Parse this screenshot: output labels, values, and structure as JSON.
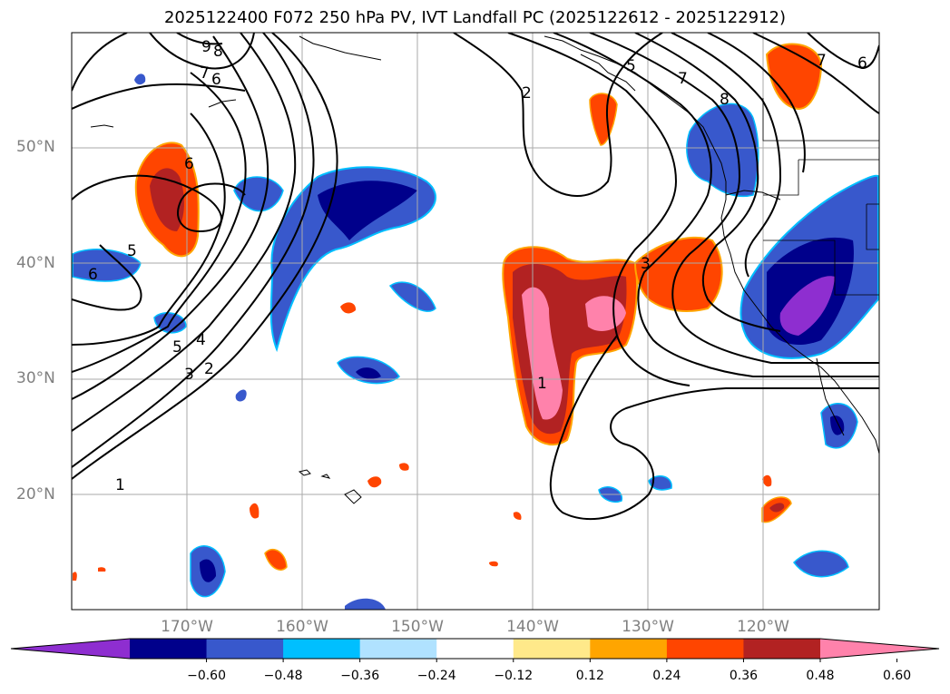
{
  "title": "2025122400 F072 250 hPa PV, IVT Landfall PC (2025122612 - 2025122912)",
  "map": {
    "lat_labels": [
      "50°N",
      "40°N",
      "30°N",
      "20°N"
    ],
    "lon_labels": [
      "170°W",
      "160°W",
      "150°W",
      "140°W",
      "130°W",
      "120°W"
    ],
    "contour_labels": [
      "9",
      "8",
      "7",
      "6",
      "6",
      "5",
      "6",
      "5",
      "4",
      "3",
      "2",
      "1",
      "2",
      "1",
      "3",
      "5",
      "7",
      "8",
      "7",
      "6"
    ]
  },
  "colorbar": {
    "ticks": [
      "−0.60",
      "−0.48",
      "−0.36",
      "−0.24",
      "−0.12",
      "0.12",
      "0.24",
      "0.36",
      "0.48",
      "0.60"
    ],
    "colors": [
      "#8e2ed0",
      "#00008b",
      "#3858cc",
      "#00bfff",
      "#b0e2ff",
      "#ffffff",
      "#ffe98a",
      "#ffa500",
      "#ff4500",
      "#b22222",
      "#ff82ab"
    ]
  }
}
